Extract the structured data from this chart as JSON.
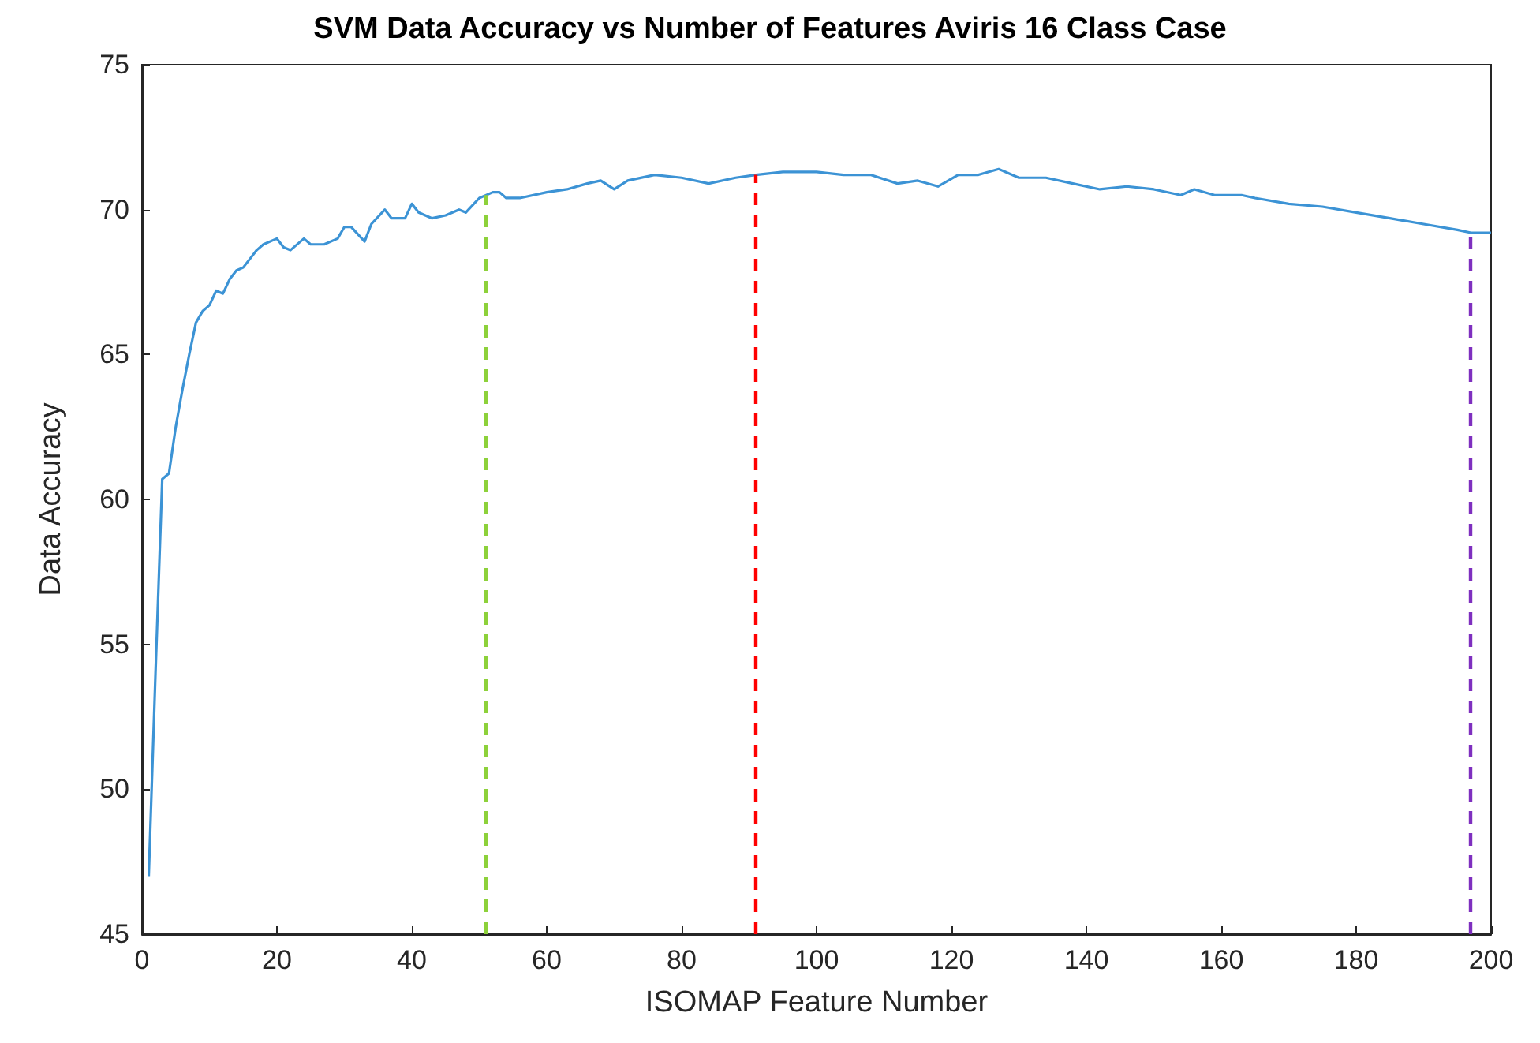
{
  "chart_data": {
    "type": "line",
    "title": "SVM Data Accuracy vs Number of Features Aviris 16 Class Case",
    "xlabel": "ISOMAP Feature Number",
    "ylabel": "Data Accuracy",
    "xlim": [
      0,
      200
    ],
    "xticks": [
      0,
      20,
      40,
      60,
      80,
      100,
      120,
      140,
      160,
      180,
      200
    ],
    "ylim": [
      45,
      75
    ],
    "yticks": [
      45,
      50,
      55,
      60,
      65,
      70,
      75
    ],
    "grid": false,
    "marker": "none",
    "line_style": "solid",
    "series": [
      {
        "color": "#3c93d5",
        "x": [
          1,
          2,
          3,
          4,
          5,
          6,
          7,
          8,
          9,
          10,
          11,
          12,
          13,
          14,
          15,
          16,
          17,
          18,
          20,
          21,
          22,
          24,
          25,
          27,
          29,
          30,
          31,
          33,
          34,
          36,
          37,
          39,
          40,
          41,
          43,
          45,
          47,
          48,
          50,
          52,
          53,
          54,
          56,
          60,
          63,
          66,
          68,
          70,
          72,
          76,
          80,
          84,
          88,
          91,
          95,
          100,
          104,
          108,
          112,
          115,
          118,
          121,
          124,
          127,
          130,
          134,
          138,
          142,
          146,
          150,
          154,
          156,
          159,
          163,
          165,
          170,
          175,
          180,
          185,
          190,
          195,
          197,
          200
        ],
        "values": [
          47,
          54,
          60.7,
          60.9,
          62.5,
          63.8,
          65,
          66.1,
          66.5,
          66.7,
          67.2,
          67.1,
          67.6,
          67.9,
          68.0,
          68.3,
          68.6,
          68.8,
          69.0,
          68.7,
          68.6,
          69.0,
          68.8,
          68.8,
          69.0,
          69.4,
          69.4,
          68.9,
          69.5,
          70.0,
          69.7,
          69.7,
          70.2,
          69.9,
          69.7,
          69.8,
          70.0,
          69.9,
          70.4,
          70.6,
          70.6,
          70.4,
          70.4,
          70.6,
          70.7,
          70.9,
          71.0,
          70.7,
          71.0,
          71.2,
          71.1,
          70.9,
          71.1,
          71.2,
          71.3,
          71.3,
          71.2,
          71.2,
          70.9,
          71.0,
          70.8,
          71.2,
          71.2,
          71.4,
          71.1,
          71.1,
          70.9,
          70.7,
          70.8,
          70.7,
          70.5,
          70.7,
          70.5,
          70.5,
          70.4,
          70.2,
          70.1,
          69.9,
          69.7,
          69.5,
          69.3,
          69.2,
          69.2
        ]
      }
    ],
    "ref_lines": [
      {
        "axis": "x",
        "value": 51,
        "color": "#8dd13a",
        "line_style": "dashed"
      },
      {
        "axis": "x",
        "value": 91,
        "color": "#ff0000",
        "line_style": "dashed"
      },
      {
        "axis": "x",
        "value": 197,
        "color": "#7e2fbf",
        "line_style": "dashed"
      }
    ]
  }
}
